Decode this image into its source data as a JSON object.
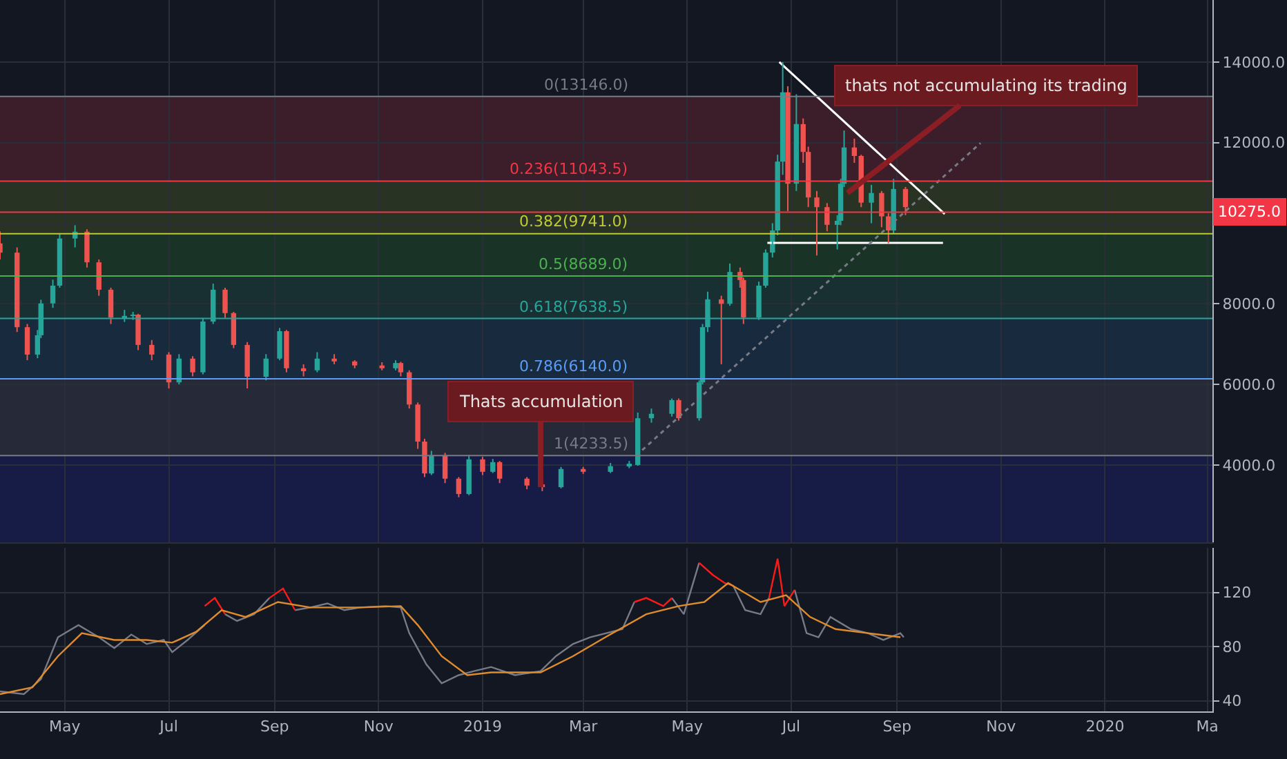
{
  "chart_data": [
    {
      "type": "candlestick",
      "xlim": [
        "2018-03-24",
        "2020-03-04"
      ],
      "ylim": [
        2080,
        15540
      ],
      "x": [
        "2018-03-24",
        "2018-04-03",
        "2018-04-09",
        "2018-04-15",
        "2018-04-17",
        "2018-04-24",
        "2018-04-28",
        "2018-05-07",
        "2018-05-14",
        "2018-05-21",
        "2018-05-28",
        "2018-06-05",
        "2018-06-10",
        "2018-06-13",
        "2018-06-21",
        "2018-07-01",
        "2018-07-07",
        "2018-07-15",
        "2018-07-21",
        "2018-07-27",
        "2018-08-03",
        "2018-08-08",
        "2018-08-16",
        "2018-08-27",
        "2018-09-04",
        "2018-09-08",
        "2018-09-18",
        "2018-09-26",
        "2018-10-06",
        "2018-10-18",
        "2018-11-03",
        "2018-11-11",
        "2018-11-14",
        "2018-11-19",
        "2018-11-24",
        "2018-11-28",
        "2018-12-02",
        "2018-12-10",
        "2018-12-18",
        "2018-12-24",
        "2019-01-01",
        "2019-01-07",
        "2019-01-11",
        "2019-01-27",
        "2019-02-05",
        "2019-02-16",
        "2019-03-01",
        "2019-03-17",
        "2019-03-28",
        "2019-04-02",
        "2019-04-10",
        "2019-04-22",
        "2019-04-26",
        "2019-05-08",
        "2019-05-10",
        "2019-05-13",
        "2019-05-21",
        "2019-05-26",
        "2019-06-01",
        "2019-06-03",
        "2019-06-12",
        "2019-06-16",
        "2019-06-20",
        "2019-06-23",
        "2019-06-26",
        "2019-06-29",
        "2019-07-04",
        "2019-07-08",
        "2019-07-11",
        "2019-07-16",
        "2019-07-22",
        "2019-07-28",
        "2019-07-30",
        "2019-08-01",
        "2019-08-07",
        "2019-08-11",
        "2019-08-17",
        "2019-08-23",
        "2019-08-27",
        "2019-08-30",
        "2019-09-06"
      ],
      "ohlc": [
        [
          9500,
          9800,
          9100,
          9270
        ],
        [
          9270,
          9400,
          7300,
          7420
        ],
        [
          7420,
          7500,
          6600,
          6740
        ],
        [
          6740,
          7350,
          6650,
          7220
        ],
        [
          7220,
          8100,
          7150,
          8010
        ],
        [
          8010,
          8600,
          7900,
          8450
        ],
        [
          8450,
          9750,
          8400,
          9620
        ],
        [
          9620,
          9950,
          9400,
          9790
        ],
        [
          9790,
          9850,
          8900,
          9030
        ],
        [
          9030,
          9100,
          8200,
          8350
        ],
        [
          8350,
          8400,
          7500,
          7660
        ],
        [
          7660,
          7850,
          7550,
          7700
        ],
        [
          7700,
          7800,
          7600,
          7730
        ],
        [
          7730,
          7750,
          6850,
          6980
        ],
        [
          6980,
          7100,
          6600,
          6740
        ],
        [
          6740,
          6800,
          5900,
          6050
        ],
        [
          6050,
          6750,
          6000,
          6640
        ],
        [
          6640,
          6700,
          6200,
          6300
        ],
        [
          6300,
          7650,
          6250,
          7560
        ],
        [
          7560,
          8500,
          7500,
          8350
        ],
        [
          8350,
          8400,
          7650,
          7770
        ],
        [
          7770,
          7800,
          6900,
          6980
        ],
        [
          6980,
          7050,
          5900,
          6190
        ],
        [
          6190,
          6750,
          6100,
          6640
        ],
        [
          6640,
          7400,
          6600,
          7320
        ],
        [
          7320,
          7350,
          6300,
          6400
        ],
        [
          6400,
          6500,
          6200,
          6350
        ],
        [
          6350,
          6800,
          6300,
          6640
        ],
        [
          6640,
          6750,
          6500,
          6570
        ],
        [
          6570,
          6600,
          6400,
          6470
        ],
        [
          6470,
          6550,
          6350,
          6400
        ],
        [
          6400,
          6600,
          6350,
          6530
        ],
        [
          6530,
          6560,
          6200,
          6300
        ],
        [
          6300,
          6350,
          5400,
          5500
        ],
        [
          5500,
          5550,
          4400,
          4580
        ],
        [
          4580,
          4650,
          3700,
          3790
        ],
        [
          3790,
          4350,
          3750,
          4240
        ],
        [
          4240,
          4300,
          3550,
          3660
        ],
        [
          3660,
          3700,
          3200,
          3280
        ],
        [
          3280,
          4250,
          3250,
          4140
        ],
        [
          4140,
          4200,
          3750,
          3830
        ],
        [
          3830,
          4150,
          3800,
          4070
        ],
        [
          4070,
          4100,
          3550,
          3660
        ],
        [
          3660,
          3700,
          3400,
          3490
        ],
        [
          3490,
          3550,
          3350,
          3450
        ],
        [
          3450,
          3950,
          3420,
          3900
        ],
        [
          3900,
          3950,
          3780,
          3830
        ],
        [
          3830,
          4050,
          3800,
          3970
        ],
        [
          3970,
          4100,
          3920,
          4000
        ],
        [
          4000,
          5300,
          3980,
          5160
        ],
        [
          5160,
          5400,
          5050,
          5270
        ],
        [
          5270,
          5650,
          5200,
          5610
        ],
        [
          5610,
          5650,
          5100,
          5160
        ],
        [
          5160,
          6100,
          5100,
          6050
        ],
        [
          6050,
          7500,
          6000,
          7420
        ],
        [
          7420,
          8300,
          7300,
          8110
        ],
        [
          8110,
          8200,
          6500,
          8000
        ],
        [
          8000,
          9000,
          7950,
          8790
        ],
        [
          8790,
          8900,
          8400,
          8590
        ],
        [
          8590,
          8650,
          7500,
          7660
        ],
        [
          7660,
          8550,
          7600,
          8450
        ],
        [
          8450,
          9350,
          8400,
          9270
        ],
        [
          9270,
          10000,
          9150,
          9820
        ],
        [
          9820,
          11700,
          9700,
          11530
        ],
        [
          11530,
          14000,
          11200,
          13250
        ],
        [
          13250,
          13400,
          10300,
          10980
        ],
        [
          10980,
          13200,
          10800,
          12460
        ],
        [
          12460,
          12600,
          11500,
          11770
        ],
        [
          11770,
          11900,
          10400,
          10640
        ],
        [
          10640,
          10800,
          9200,
          10400
        ],
        [
          10400,
          10500,
          9800,
          9960
        ],
        [
          9960,
          10200,
          9350,
          10060
        ],
        [
          10060,
          11100,
          9950,
          10980
        ],
        [
          10980,
          12300,
          10900,
          11880
        ],
        [
          11880,
          12100,
          11500,
          11670
        ],
        [
          11670,
          11700,
          10400,
          10510
        ],
        [
          10510,
          10950,
          10000,
          10750
        ],
        [
          10750,
          10800,
          9900,
          10170
        ],
        [
          10170,
          10250,
          9500,
          9820
        ],
        [
          9820,
          11100,
          9750,
          10850
        ],
        [
          10850,
          10900,
          10200,
          10400
        ]
      ],
      "series": [
        {
          "type": "line",
          "color": "#ffffff",
          "x": [
            "2019-06-24",
            "2019-09-29"
          ],
          "values": [
            14000,
            10230
          ]
        },
        {
          "type": "line",
          "color": "#ffffff",
          "x": [
            "2019-06-17",
            "2019-09-28"
          ],
          "values": [
            9510,
            9510
          ]
        },
        {
          "type": "line",
          "color": "#787b86",
          "line_style": "dotted",
          "x": [
            "2019-04-01",
            "2019-10-20"
          ],
          "values": [
            4230,
            11990
          ]
        }
      ],
      "ref_lines": [
        {
          "axis": "y",
          "value": 13146,
          "label": "0(13146.0)",
          "color": "#787b86"
        },
        {
          "axis": "y",
          "value": 11043.5,
          "label": "0.236(11043.5)",
          "color": "#f23645"
        },
        {
          "axis": "y",
          "value": 9741,
          "label": "0.382(9741.0)",
          "color": "#c0ca33"
        },
        {
          "axis": "y",
          "value": 8689,
          "label": "0.5(8689.0)",
          "color": "#4caf50"
        },
        {
          "axis": "y",
          "value": 7638.5,
          "label": "0.618(7638.5)",
          "color": "#26a69a"
        },
        {
          "axis": "y",
          "value": 6140,
          "label": "0.786(6140.0)",
          "color": "#5b9cf6"
        },
        {
          "axis": "y",
          "value": 4233.5,
          "label": "1(4233.5)",
          "color": "#787b86"
        },
        {
          "axis": "y",
          "value": 10275,
          "label": "10275.0",
          "color": "#f23645"
        }
      ],
      "bands": [
        {
          "axis": "y",
          "from": 11043.5,
          "to": 13146,
          "color": "#5c2530"
        },
        {
          "axis": "y",
          "from": 9741,
          "to": 11043.5,
          "color": "#3a4a26"
        },
        {
          "axis": "y",
          "from": 8689,
          "to": 9741,
          "color": "#1f4a2c"
        },
        {
          "axis": "y",
          "from": 7638.5,
          "to": 8689,
          "color": "#1f4540"
        },
        {
          "axis": "y",
          "from": 6140,
          "to": 7638.5,
          "color": "#1d3a55"
        },
        {
          "axis": "y",
          "from": 4233.5,
          "to": 6140,
          "color": "#36394a"
        },
        {
          "axis": "y",
          "from": 2080,
          "to": 4233.5,
          "color": "#1c2166"
        }
      ],
      "annotations": [
        {
          "text": "Thats accumulation",
          "x": "2019-02-04",
          "y": 3450
        },
        {
          "text": "thats not accumulating its trading",
          "x": "2019-08-03",
          "y": 10750
        }
      ],
      "xticks": [
        {
          "value": "2018-05-01",
          "label": null
        },
        {
          "value": "2018-07-01",
          "label": null
        },
        {
          "value": "2018-09-01",
          "label": null
        },
        {
          "value": "2018-11-01",
          "label": null
        },
        {
          "value": "2019-01-01",
          "label": null
        },
        {
          "value": "2019-03-01",
          "label": null
        },
        {
          "value": "2019-05-01",
          "label": null
        },
        {
          "value": "2019-07-01",
          "label": null
        },
        {
          "value": "2019-09-01",
          "label": null
        },
        {
          "value": "2019-11-01",
          "label": null
        },
        {
          "value": "2020-01-01",
          "label": null
        },
        {
          "value": "2020-03-01",
          "label": null
        }
      ],
      "yticks": [
        {
          "value": 4000,
          "label": "4000.0"
        },
        {
          "value": 6000,
          "label": "6000.0"
        },
        {
          "value": 8000,
          "label": "8000.0"
        },
        {
          "value": 10000,
          "label": null
        },
        {
          "value": 12000,
          "label": "12000.0"
        },
        {
          "value": 14000,
          "label": "14000.0"
        }
      ],
      "grid": true,
      "tick_labels": "y"
    },
    {
      "type": "line",
      "xlim": [
        "2018-03-24",
        "2020-03-04"
      ],
      "ylim": [
        32,
        153
      ],
      "series": [
        {
          "color": "#787b86",
          "x": [
            "2018-03-24",
            "2018-04-07",
            "2018-04-17",
            "2018-04-27",
            "2018-05-09",
            "2018-05-21",
            "2018-05-30",
            "2018-06-09",
            "2018-06-18",
            "2018-06-28",
            "2018-07-03",
            "2018-07-12",
            "2018-07-22",
            "2018-07-28",
            "2018-08-03",
            "2018-08-10",
            "2018-08-20",
            "2018-08-29",
            "2018-09-06",
            "2018-09-13",
            "2018-09-22",
            "2018-10-02",
            "2018-10-12",
            "2018-10-21",
            "2018-11-05",
            "2018-11-14",
            "2018-11-19",
            "2018-11-29",
            "2018-12-08",
            "2018-12-18",
            "2018-12-27",
            "2019-01-06",
            "2019-01-20",
            "2019-02-04",
            "2019-02-13",
            "2019-02-23",
            "2019-03-05",
            "2019-03-24",
            "2019-03-31",
            "2019-04-07",
            "2019-04-17",
            "2019-04-22",
            "2019-04-29",
            "2019-05-08",
            "2019-05-16",
            "2019-05-23",
            "2019-05-28",
            "2019-06-04",
            "2019-06-13",
            "2019-06-18",
            "2019-06-23",
            "2019-06-27",
            "2019-07-03",
            "2019-07-10",
            "2019-07-17",
            "2019-07-24",
            "2019-08-05",
            "2019-08-15",
            "2019-08-24",
            "2019-09-03",
            "2019-09-05"
          ],
          "values": [
            47,
            45,
            56,
            87,
            96,
            87,
            79,
            89,
            82,
            85,
            76,
            85,
            96,
            null,
            104,
            99,
            104,
            116,
            null,
            107,
            109,
            112,
            107,
            109,
            110,
            109,
            90,
            67,
            53,
            59,
            62,
            65,
            59,
            62,
            73,
            82,
            87,
            93,
            113,
            null,
            null,
            116,
            104,
            142,
            null,
            null,
            125,
            107,
            104,
            116,
            null,
            null,
            122,
            90,
            87,
            102,
            93,
            90,
            85,
            90,
            87
          ]
        },
        {
          "color": "#ff1a1a",
          "x": [
            "2018-07-22",
            "2018-07-28",
            "2018-08-03",
            null,
            "2018-08-29",
            "2018-09-06",
            "2018-09-13",
            null,
            "2019-03-31",
            "2019-04-07",
            "2019-04-17",
            "2019-04-22",
            null,
            "2019-05-08",
            "2019-05-16",
            "2019-05-23",
            "2019-05-28",
            null,
            "2019-06-18",
            "2019-06-23",
            "2019-06-27",
            "2019-07-03"
          ],
          "values": [
            110,
            116,
            104,
            null,
            116,
            123,
            107,
            null,
            113,
            116,
            110,
            116,
            null,
            142,
            133,
            127,
            125,
            null,
            116,
            145,
            110,
            122
          ]
        },
        {
          "color": "#e08c2c",
          "x": [
            "2018-03-24",
            "2018-04-12",
            "2018-04-27",
            "2018-05-11",
            "2018-05-30",
            "2018-06-18",
            "2018-07-03",
            "2018-07-17",
            "2018-08-01",
            "2018-08-15",
            "2018-09-03",
            "2018-09-22",
            "2018-10-21",
            "2018-11-14",
            "2018-11-24",
            "2018-12-08",
            "2018-12-23",
            "2019-01-06",
            "2019-02-04",
            "2019-02-23",
            "2019-03-14",
            "2019-04-07",
            "2019-04-26",
            "2019-05-11",
            "2019-05-25",
            "2019-06-13",
            "2019-06-28",
            "2019-07-12",
            "2019-07-27",
            "2019-08-15",
            "2019-09-03"
          ],
          "values": [
            45,
            50,
            73,
            90,
            85,
            85,
            83,
            91,
            107,
            102,
            113,
            109,
            109,
            110,
            96,
            73,
            59,
            61,
            61,
            73,
            87,
            104,
            110,
            113,
            127,
            113,
            118,
            102,
            93,
            90,
            87
          ]
        }
      ],
      "xticks": [
        {
          "value": "2018-05-01",
          "label": "May"
        },
        {
          "value": "2018-07-01",
          "label": "Jul"
        },
        {
          "value": "2018-09-01",
          "label": "Sep"
        },
        {
          "value": "2018-11-01",
          "label": "Nov"
        },
        {
          "value": "2019-01-01",
          "label": "2019"
        },
        {
          "value": "2019-03-01",
          "label": "Mar"
        },
        {
          "value": "2019-05-01",
          "label": "May"
        },
        {
          "value": "2019-07-01",
          "label": "Jul"
        },
        {
          "value": "2019-09-01",
          "label": "Sep"
        },
        {
          "value": "2019-11-01",
          "label": "Nov"
        },
        {
          "value": "2020-01-01",
          "label": "2020"
        },
        {
          "value": "2020-03-01",
          "label": "Ma"
        }
      ],
      "yticks": [
        40,
        80,
        120
      ],
      "grid": true
    }
  ]
}
